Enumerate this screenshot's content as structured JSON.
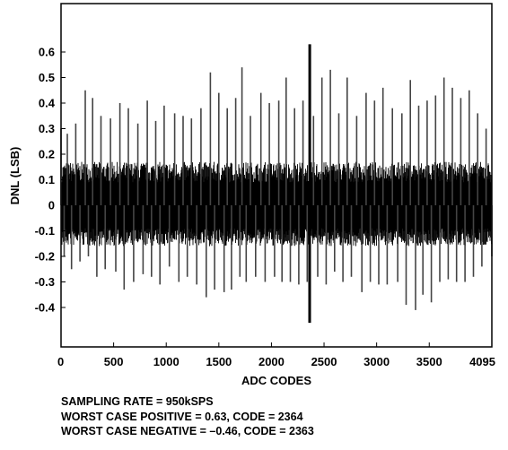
{
  "chart_data": {
    "type": "line",
    "xlabel": "ADC CODES",
    "ylabel": "DNL (LSB)",
    "xlim": [
      0,
      4095
    ],
    "ylim": [
      -0.45,
      0.63
    ],
    "xticks": [
      0,
      500,
      1000,
      1500,
      2000,
      2500,
      3000,
      3500,
      4095
    ],
    "yticks": [
      -0.4,
      -0.3,
      -0.2,
      -0.1,
      0,
      0.1,
      0.2,
      0.3,
      0.4,
      0.5,
      0.6
    ],
    "ytick_labels": [
      "-0.4",
      "-0.3",
      "-0.2",
      "-0.1",
      "0",
      "0.1",
      "0.2",
      "0.3",
      "0.4",
      "0.5",
      "0.6"
    ],
    "grid": false,
    "legend": "none",
    "series": [
      {
        "color": "#000000",
        "x": [
          0,
          30,
          60,
          100,
          140,
          180,
          230,
          260,
          300,
          340,
          380,
          420,
          470,
          520,
          560,
          600,
          640,
          690,
          730,
          780,
          820,
          860,
          900,
          940,
          980,
          1030,
          1080,
          1120,
          1160,
          1200,
          1240,
          1290,
          1330,
          1380,
          1420,
          1460,
          1500,
          1550,
          1580,
          1620,
          1660,
          1700,
          1720,
          1760,
          1800,
          1850,
          1900,
          1940,
          1980,
          2030,
          2070,
          2100,
          2140,
          2180,
          2220,
          2260,
          2300,
          2340,
          2363,
          2364,
          2400,
          2440,
          2480,
          2520,
          2560,
          2600,
          2640,
          2680,
          2720,
          2760,
          2810,
          2860,
          2900,
          2940,
          2980,
          3020,
          3060,
          3100,
          3150,
          3200,
          3240,
          3280,
          3320,
          3370,
          3400,
          3440,
          3480,
          3520,
          3560,
          3600,
          3640,
          3680,
          3720,
          3760,
          3800,
          3840,
          3880,
          3920,
          3960,
          4000,
          4040,
          4095
        ],
        "y": [
          0.3,
          -0.2,
          0.28,
          -0.25,
          0.32,
          -0.22,
          0.45,
          -0.2,
          0.42,
          -0.28,
          0.35,
          -0.25,
          0.34,
          -0.26,
          0.4,
          -0.33,
          0.38,
          -0.3,
          0.32,
          -0.27,
          0.41,
          -0.28,
          0.33,
          -0.31,
          0.39,
          -0.24,
          0.36,
          -0.3,
          0.35,
          -0.28,
          0.34,
          -0.31,
          0.38,
          -0.36,
          0.52,
          -0.33,
          0.44,
          -0.34,
          0.38,
          -0.33,
          0.42,
          -0.28,
          0.54,
          -0.3,
          0.35,
          -0.28,
          0.44,
          -0.3,
          0.4,
          -0.28,
          0.41,
          -0.3,
          0.5,
          -0.3,
          0.38,
          -0.31,
          0.41,
          -0.3,
          -0.46,
          0.63,
          0.35,
          -0.28,
          0.5,
          -0.31,
          0.53,
          -0.26,
          0.36,
          -0.3,
          0.5,
          -0.28,
          0.35,
          -0.34,
          0.44,
          -0.3,
          0.41,
          -0.31,
          0.46,
          -0.31,
          0.38,
          -0.3,
          0.36,
          -0.39,
          0.49,
          -0.41,
          0.39,
          -0.35,
          0.41,
          -0.38,
          0.43,
          -0.3,
          0.5,
          -0.29,
          0.46,
          -0.3,
          0.42,
          -0.3,
          0.45,
          -0.28,
          0.36,
          -0.24,
          0.3,
          -0.2
        ]
      }
    ]
  },
  "notes": {
    "sampling_rate": "SAMPLING RATE = 950kSPS",
    "worst_positive": "WORST CASE POSITIVE = 0.63, CODE = 2364",
    "worst_negative": "WORST CASE NEGATIVE = –0.46, CODE = 2363"
  }
}
